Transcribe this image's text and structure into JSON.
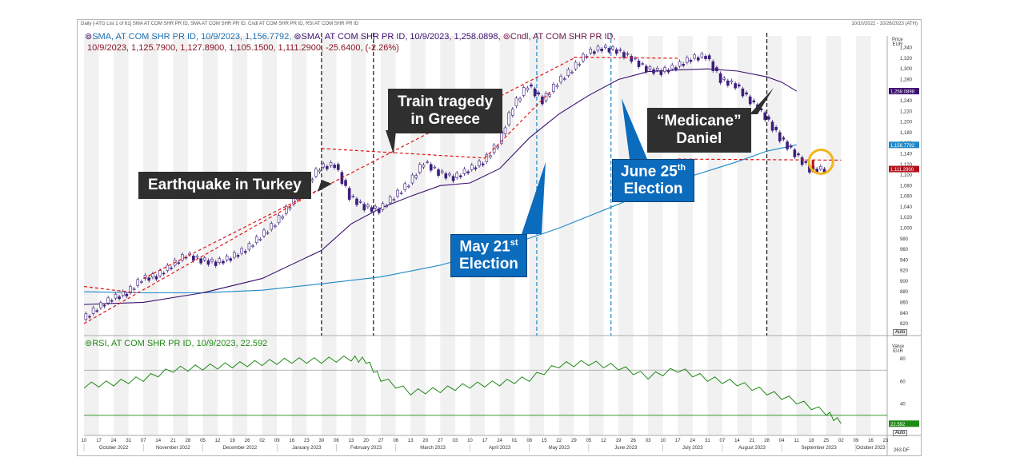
{
  "header": {
    "left": "Daily [-ATG List 1 of 61] SMA AT COM SHR PR ID, SMA AT COM SHR PR ID, Cndl AT COM SHR PR ID, RSI AT COM SHR PR ID",
    "right": "10/10/2022 - 10/26/2023 (ATH)"
  },
  "legend": {
    "line1_a": "SMA, AT COM SHR PR ID, 10/9/2023, 1,156.7792,",
    "line1_b": "SMA, AT COM SHR PR ID, 10/9/2023, 1,258.0898,",
    "line1_c": "Cndl, AT COM SHR PR ID,",
    "line2": "10/9/2023, 1,125.7900, 1,127.8900, 1,105.1500, 1,111.2900, -25.6400, (-2.26%)",
    "rsi": "RSI, AT COM SHR PR ID, 10/9/2023, 22.592"
  },
  "callouts": {
    "earthquake": "Earthquake in Turkey",
    "train_1": "Train tragedy",
    "train_2": "in Greece",
    "may_1": "May 21",
    "may_sup": "st",
    "may_2": "Election",
    "june_1": "June 25",
    "june_sup": "th",
    "june_2": "Election",
    "medicane_1": "“Medicane”",
    "medicane_2": "Daniel"
  },
  "axes": {
    "price_caption_1": "Price",
    "price_caption_2": "EUR",
    "rsi_caption_1": "Value",
    "rsi_caption_2": "EUR",
    "auto": "Auto",
    "corner": "263 DF"
  },
  "colors": {
    "sma_fast": "#3b0f6e",
    "sma_slow": "#1e88c8",
    "candle": "#3c1e7c",
    "trend": "#e01010",
    "rsi": "#1f8a14",
    "fast_tag": "#3b0f6e",
    "slow_tag": "#1e88c8",
    "last_tag": "#b1101c",
    "rsi_tag": "#1f8a14",
    "callout_dark": "#2f2f2f",
    "callout_blue": "#0b6bbd",
    "highlight": "#f2b51d"
  },
  "chart_data": [
    {
      "type": "line",
      "panel": "price",
      "y_ticks": [
        "1,340",
        "1,320",
        "1,300",
        "1,280",
        "1,260",
        "1,240",
        "1,220",
        "1,200",
        "1,180",
        "1,160",
        "1,140",
        "1,120",
        "1,100",
        "1,080",
        "1,060",
        "1,040",
        "1,020",
        "1,000",
        "980",
        "960",
        "940",
        "920",
        "900",
        "880",
        "860",
        "840",
        "820"
      ],
      "ylim": [
        805,
        1350
      ],
      "x_ticks": [
        "10",
        "17",
        "24",
        "31",
        "07",
        "14",
        "21",
        "28",
        "05",
        "12",
        "19",
        "26",
        "02",
        "09",
        "16",
        "23",
        "30",
        "06",
        "13",
        "20",
        "27",
        "06",
        "13",
        "20",
        "27",
        "03",
        "10",
        "17",
        "24",
        "01",
        "08",
        "15",
        "22",
        "29",
        "05",
        "12",
        "19",
        "26",
        "03",
        "10",
        "17",
        "24",
        "31",
        "07",
        "14",
        "21",
        "28",
        "04",
        "11",
        "18",
        "25",
        "02",
        "09",
        "16",
        "23"
      ],
      "months": [
        "October 2022",
        "November 2022",
        "December 2022",
        "January 2023",
        "February 2023",
        "March 2023",
        "April 2023",
        "May 2023",
        "June 2023",
        "July 2023",
        "August 2023",
        "September 2023",
        "October 2023"
      ],
      "month_ticks": [
        0,
        4,
        8,
        13,
        17,
        21,
        26,
        30,
        34,
        39,
        43,
        47,
        52
      ],
      "series": [
        {
          "name": "Cndl, AT COM SHR PR ID",
          "kind": "candle_close",
          "x": [
            0,
            1,
            2,
            3,
            4,
            5,
            6,
            7,
            8,
            9,
            10,
            11,
            12,
            13,
            14,
            15,
            16,
            17,
            18,
            19,
            20,
            21,
            22,
            23,
            24,
            25,
            26,
            27,
            28,
            29,
            30,
            31,
            32,
            33,
            34,
            35,
            36,
            37,
            38,
            39,
            40,
            41,
            42,
            43,
            44,
            45,
            46,
            47,
            48,
            49,
            50,
            51
          ],
          "values": [
            828,
            850,
            868,
            878,
            905,
            910,
            930,
            950,
            940,
            935,
            945,
            960,
            985,
            1010,
            1045,
            1080,
            1115,
            1120,
            1060,
            1040,
            1035,
            1060,
            1085,
            1125,
            1105,
            1095,
            1110,
            1125,
            1160,
            1230,
            1270,
            1240,
            1275,
            1300,
            1330,
            1340,
            1335,
            1320,
            1300,
            1295,
            1305,
            1320,
            1325,
            1280,
            1270,
            1240,
            1210,
            1170,
            1140,
            1111.29,
            1111.29,
            1111.29
          ]
        },
        {
          "name": "SMA, AT COM SHR PR ID",
          "values_label": "1,258.0898",
          "kind": "sma_fast",
          "x": [
            0,
            4,
            8,
            12,
            16,
            18,
            20,
            22,
            24,
            26,
            28,
            30,
            32,
            34,
            36,
            38,
            40,
            42,
            44,
            46,
            47,
            48
          ],
          "values": [
            856,
            860,
            878,
            905,
            958,
            1008,
            1038,
            1060,
            1080,
            1085,
            1112,
            1170,
            1215,
            1250,
            1280,
            1295,
            1298,
            1300,
            1296,
            1285,
            1275,
            1258.09
          ]
        },
        {
          "name": "SMA, AT COM SHR PR ID",
          "values_label": "1,156.7792",
          "kind": "sma_slow",
          "x": [
            0,
            4,
            8,
            12,
            16,
            20,
            24,
            28,
            32,
            36,
            40,
            44,
            46,
            48
          ],
          "values": [
            880,
            878,
            878,
            883,
            895,
            908,
            930,
            962,
            1000,
            1045,
            1090,
            1125,
            1145,
            1156.78
          ]
        }
      ],
      "trendlines": [
        {
          "x": [
            0,
            3.5
          ],
          "y": [
            890,
            878
          ]
        },
        {
          "x": [
            0,
            16
          ],
          "y": [
            820,
            1075
          ]
        },
        {
          "x": [
            4,
            16
          ],
          "y": [
            905,
            1075
          ]
        },
        {
          "x": [
            16,
            27
          ],
          "y": [
            1150,
            1132
          ]
        },
        {
          "x": [
            16,
            33
          ],
          "y": [
            1075,
            1320
          ]
        },
        {
          "x": [
            27,
            31.5
          ],
          "y": [
            1132,
            1260
          ]
        },
        {
          "x": [
            33,
            40
          ],
          "y": [
            1322,
            1320
          ]
        },
        {
          "x": [
            40,
            51
          ],
          "y": [
            1130,
            1128
          ]
        }
      ],
      "events": [
        {
          "label": "Earthquake in Turkey",
          "x": 16
        },
        {
          "label": "Train tragedy in Greece",
          "x": 19.5
        },
        {
          "label": "May 21st Election",
          "x": 30.5
        },
        {
          "label": "June 25th Election",
          "x": 35.5
        },
        {
          "label": "“Medicane” Daniel",
          "x": 46
        }
      ],
      "value_tags": [
        "1,258.0898",
        "1,156.7792",
        "1,111.2900"
      ]
    },
    {
      "type": "line",
      "panel": "rsi",
      "y_ticks": [
        "80",
        "60",
        "40"
      ],
      "ylim": [
        15,
        90
      ],
      "reference_lines": [
        70,
        30
      ],
      "series": [
        {
          "name": "RSI, AT COM SHR PR ID",
          "x": [
            0,
            2,
            4,
            6,
            8,
            10,
            12,
            14,
            16,
            18,
            19,
            20,
            22,
            24,
            26,
            28,
            30,
            32,
            34,
            36,
            38,
            40,
            42,
            44,
            46,
            48,
            50,
            51
          ],
          "values": [
            56,
            58,
            62,
            70,
            72,
            74,
            76,
            78,
            78,
            80,
            78,
            62,
            50,
            52,
            56,
            58,
            62,
            74,
            76,
            72,
            64,
            70,
            62,
            58,
            50,
            42,
            32,
            22.592
          ]
        }
      ],
      "value_tag": "22.592"
    }
  ]
}
